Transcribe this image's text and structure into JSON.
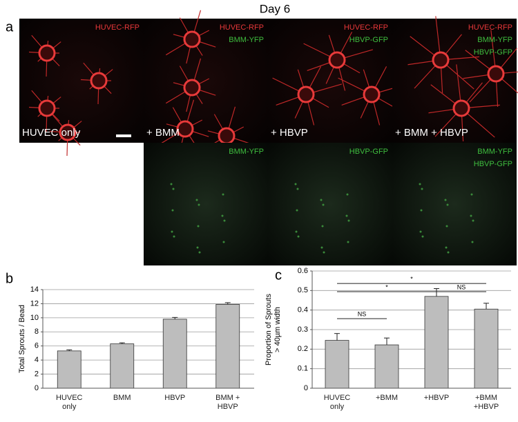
{
  "title": "Day 6",
  "panel_a": {
    "label": "a",
    "images": [
      {
        "caption": "HUVEC only",
        "channels": [
          {
            "name": "HUVEC-RFP",
            "color": "#e8383a"
          }
        ]
      },
      {
        "caption": "+ BMM",
        "channels": [
          {
            "name": "HUVEC-RFP",
            "color": "#e8383a"
          },
          {
            "name": "BMM-YFP",
            "color": "#3fbf3f"
          }
        ]
      },
      {
        "caption": "+ HBVP",
        "channels": [
          {
            "name": "HUVEC-RFP",
            "color": "#e8383a"
          },
          {
            "name": "HBVP-GFP",
            "color": "#3fbf3f"
          }
        ]
      },
      {
        "caption": "+ BMM + HBVP",
        "channels": [
          {
            "name": "HUVEC-RFP",
            "color": "#e8383a"
          },
          {
            "name": "BMM-YFP",
            "color": "#3fbf3f"
          },
          {
            "name": "HBVP-GFP",
            "color": "#3fbf3f"
          }
        ]
      }
    ],
    "green_images": [
      {
        "channels": [
          {
            "name": "BMM-YFP",
            "color": "#3fbf3f"
          }
        ]
      },
      {
        "channels": [
          {
            "name": "HBVP-GFP",
            "color": "#3fbf3f"
          }
        ]
      },
      {
        "channels": [
          {
            "name": "BMM-YFP",
            "color": "#3fbf3f"
          },
          {
            "name": "HBVP-GFP",
            "color": "#3fbf3f"
          }
        ]
      }
    ]
  },
  "chart_data": [
    {
      "type": "bar",
      "panel_label": "b",
      "y_label": [
        "Total Sprouts / Bead"
      ],
      "categories": [
        "HUVEC only",
        "BMM",
        "HBVP",
        "BMM + HBVP"
      ],
      "values": [
        5.3,
        6.3,
        9.8,
        11.9
      ],
      "errors": [
        0.15,
        0.15,
        0.25,
        0.25
      ],
      "color": "#bdbdbd",
      "ylim": [
        0,
        14
      ],
      "yticks": [
        0,
        2,
        4,
        6,
        8,
        10,
        12,
        14
      ],
      "grid": true
    },
    {
      "type": "bar",
      "panel_label": "c",
      "y_label": [
        "Proportion of Sprouts",
        "> 40µm width"
      ],
      "categories": [
        "HUVEC only",
        "+BMM",
        "+HBVP",
        "+BMM +HBVP"
      ],
      "values": [
        0.245,
        0.222,
        0.47,
        0.405
      ],
      "errors": [
        0.035,
        0.035,
        0.04,
        0.03
      ],
      "color": "#bdbdbd",
      "ylim": [
        0,
        0.6
      ],
      "yticks": [
        0,
        0.1,
        0.2,
        0.3,
        0.4,
        0.5,
        0.6
      ],
      "grid": true,
      "annotations": [
        {
          "text": "NS",
          "y": 0.356,
          "from": 0,
          "to": 1
        },
        {
          "text": "*",
          "y": 0.494,
          "from": 0,
          "to": 2
        },
        {
          "text": "NS",
          "y": 0.494,
          "from": 2,
          "to": 3
        },
        {
          "text": "*",
          "y": 0.536,
          "from": 0,
          "to": 3
        }
      ]
    }
  ]
}
